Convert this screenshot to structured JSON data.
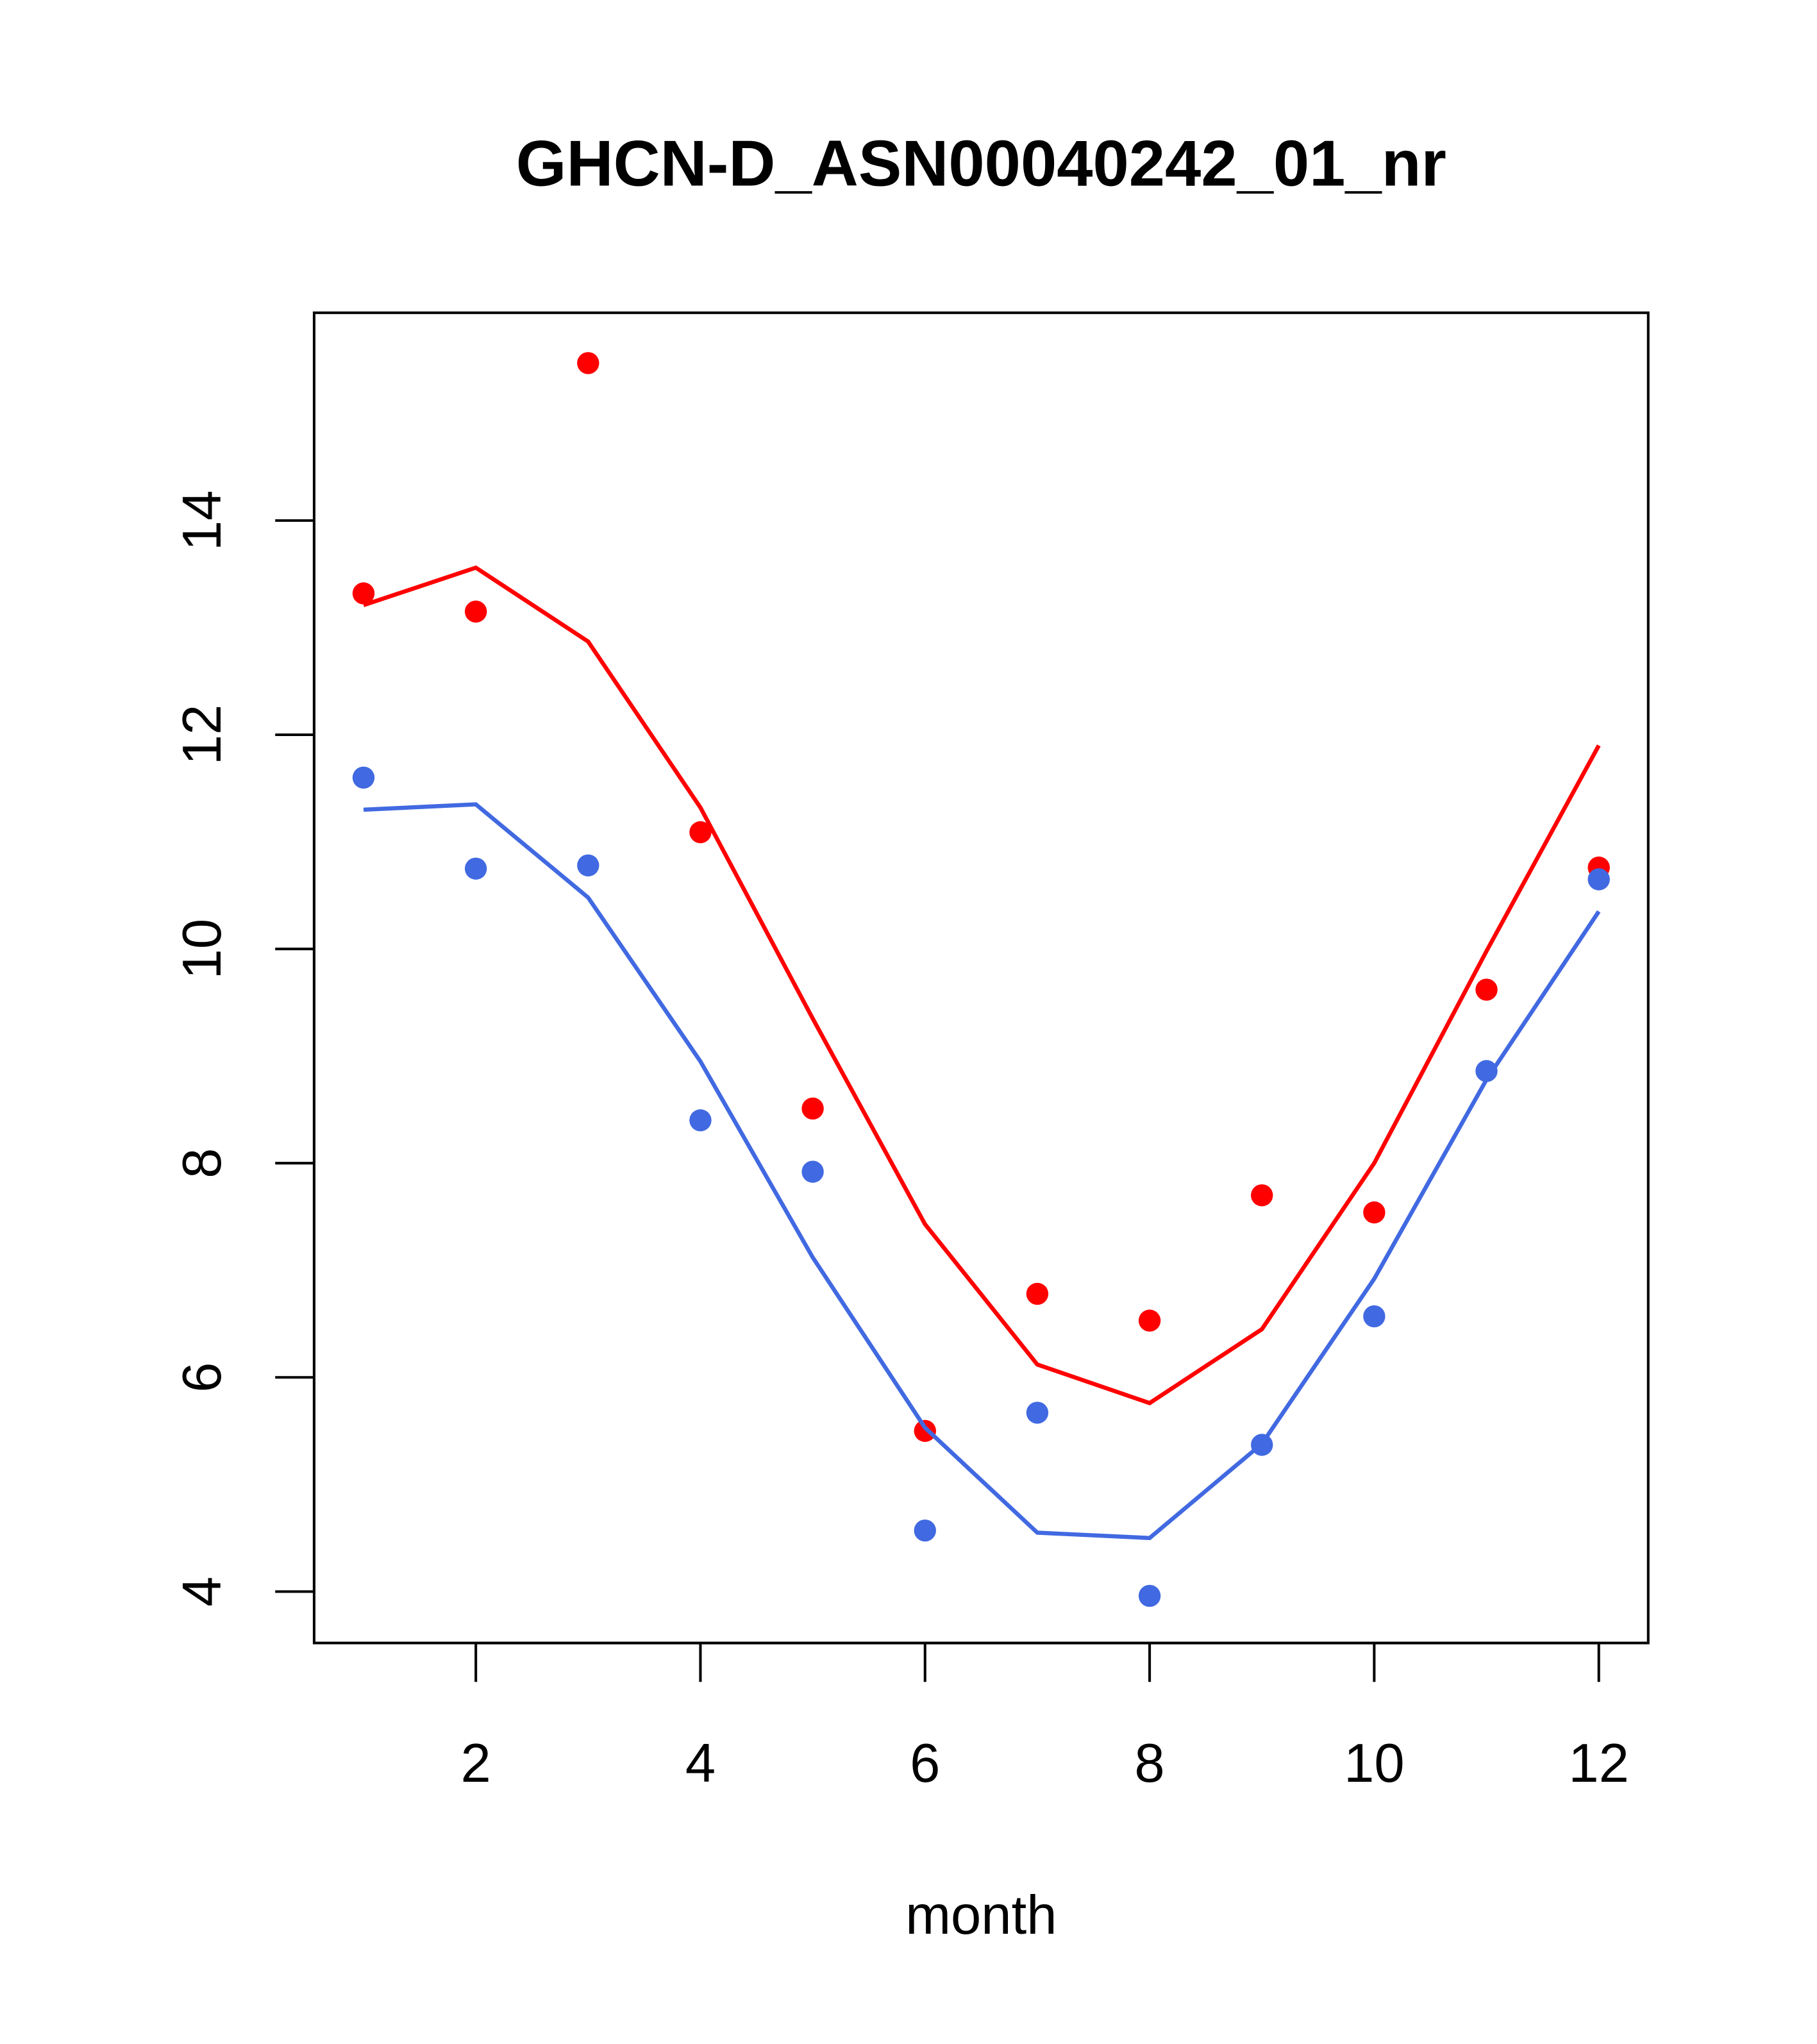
{
  "chart_data": {
    "type": "scatter",
    "title": "GHCN-D_ASN00040242_01_nr",
    "xlabel": "month",
    "ylabel": "",
    "xlim": [
      0.56,
      12.44
    ],
    "ylim": [
      3.52,
      15.94
    ],
    "x_ticks": [
      2,
      4,
      6,
      8,
      10,
      12
    ],
    "y_ticks": [
      4,
      6,
      8,
      10,
      12,
      14
    ],
    "x": [
      1,
      2,
      3,
      4,
      5,
      6,
      7,
      8,
      9,
      10,
      11,
      12
    ],
    "series": [
      {
        "name": "red points",
        "kind": "points",
        "color": "#ff0000",
        "values": [
          13.32,
          13.15,
          15.47,
          11.09,
          8.51,
          5.5,
          6.78,
          6.53,
          7.7,
          7.54,
          9.62,
          10.76
        ]
      },
      {
        "name": "red line",
        "kind": "line",
        "color": "#ff0000",
        "values": [
          13.21,
          13.56,
          12.87,
          11.32,
          9.35,
          7.43,
          6.12,
          5.76,
          6.45,
          8.0,
          9.98,
          11.9
        ]
      },
      {
        "name": "blue points",
        "kind": "points",
        "color": "#4169e1",
        "values": [
          11.6,
          10.75,
          10.78,
          8.4,
          7.92,
          4.57,
          5.67,
          3.96,
          5.37,
          6.57,
          8.86,
          10.65
        ]
      },
      {
        "name": "blue line",
        "kind": "line",
        "color": "#4169e1",
        "values": [
          11.3,
          11.35,
          10.48,
          8.95,
          7.12,
          5.53,
          4.55,
          4.5,
          5.38,
          6.92,
          8.78,
          10.35
        ]
      }
    ],
    "grid": false,
    "legend": "none"
  }
}
